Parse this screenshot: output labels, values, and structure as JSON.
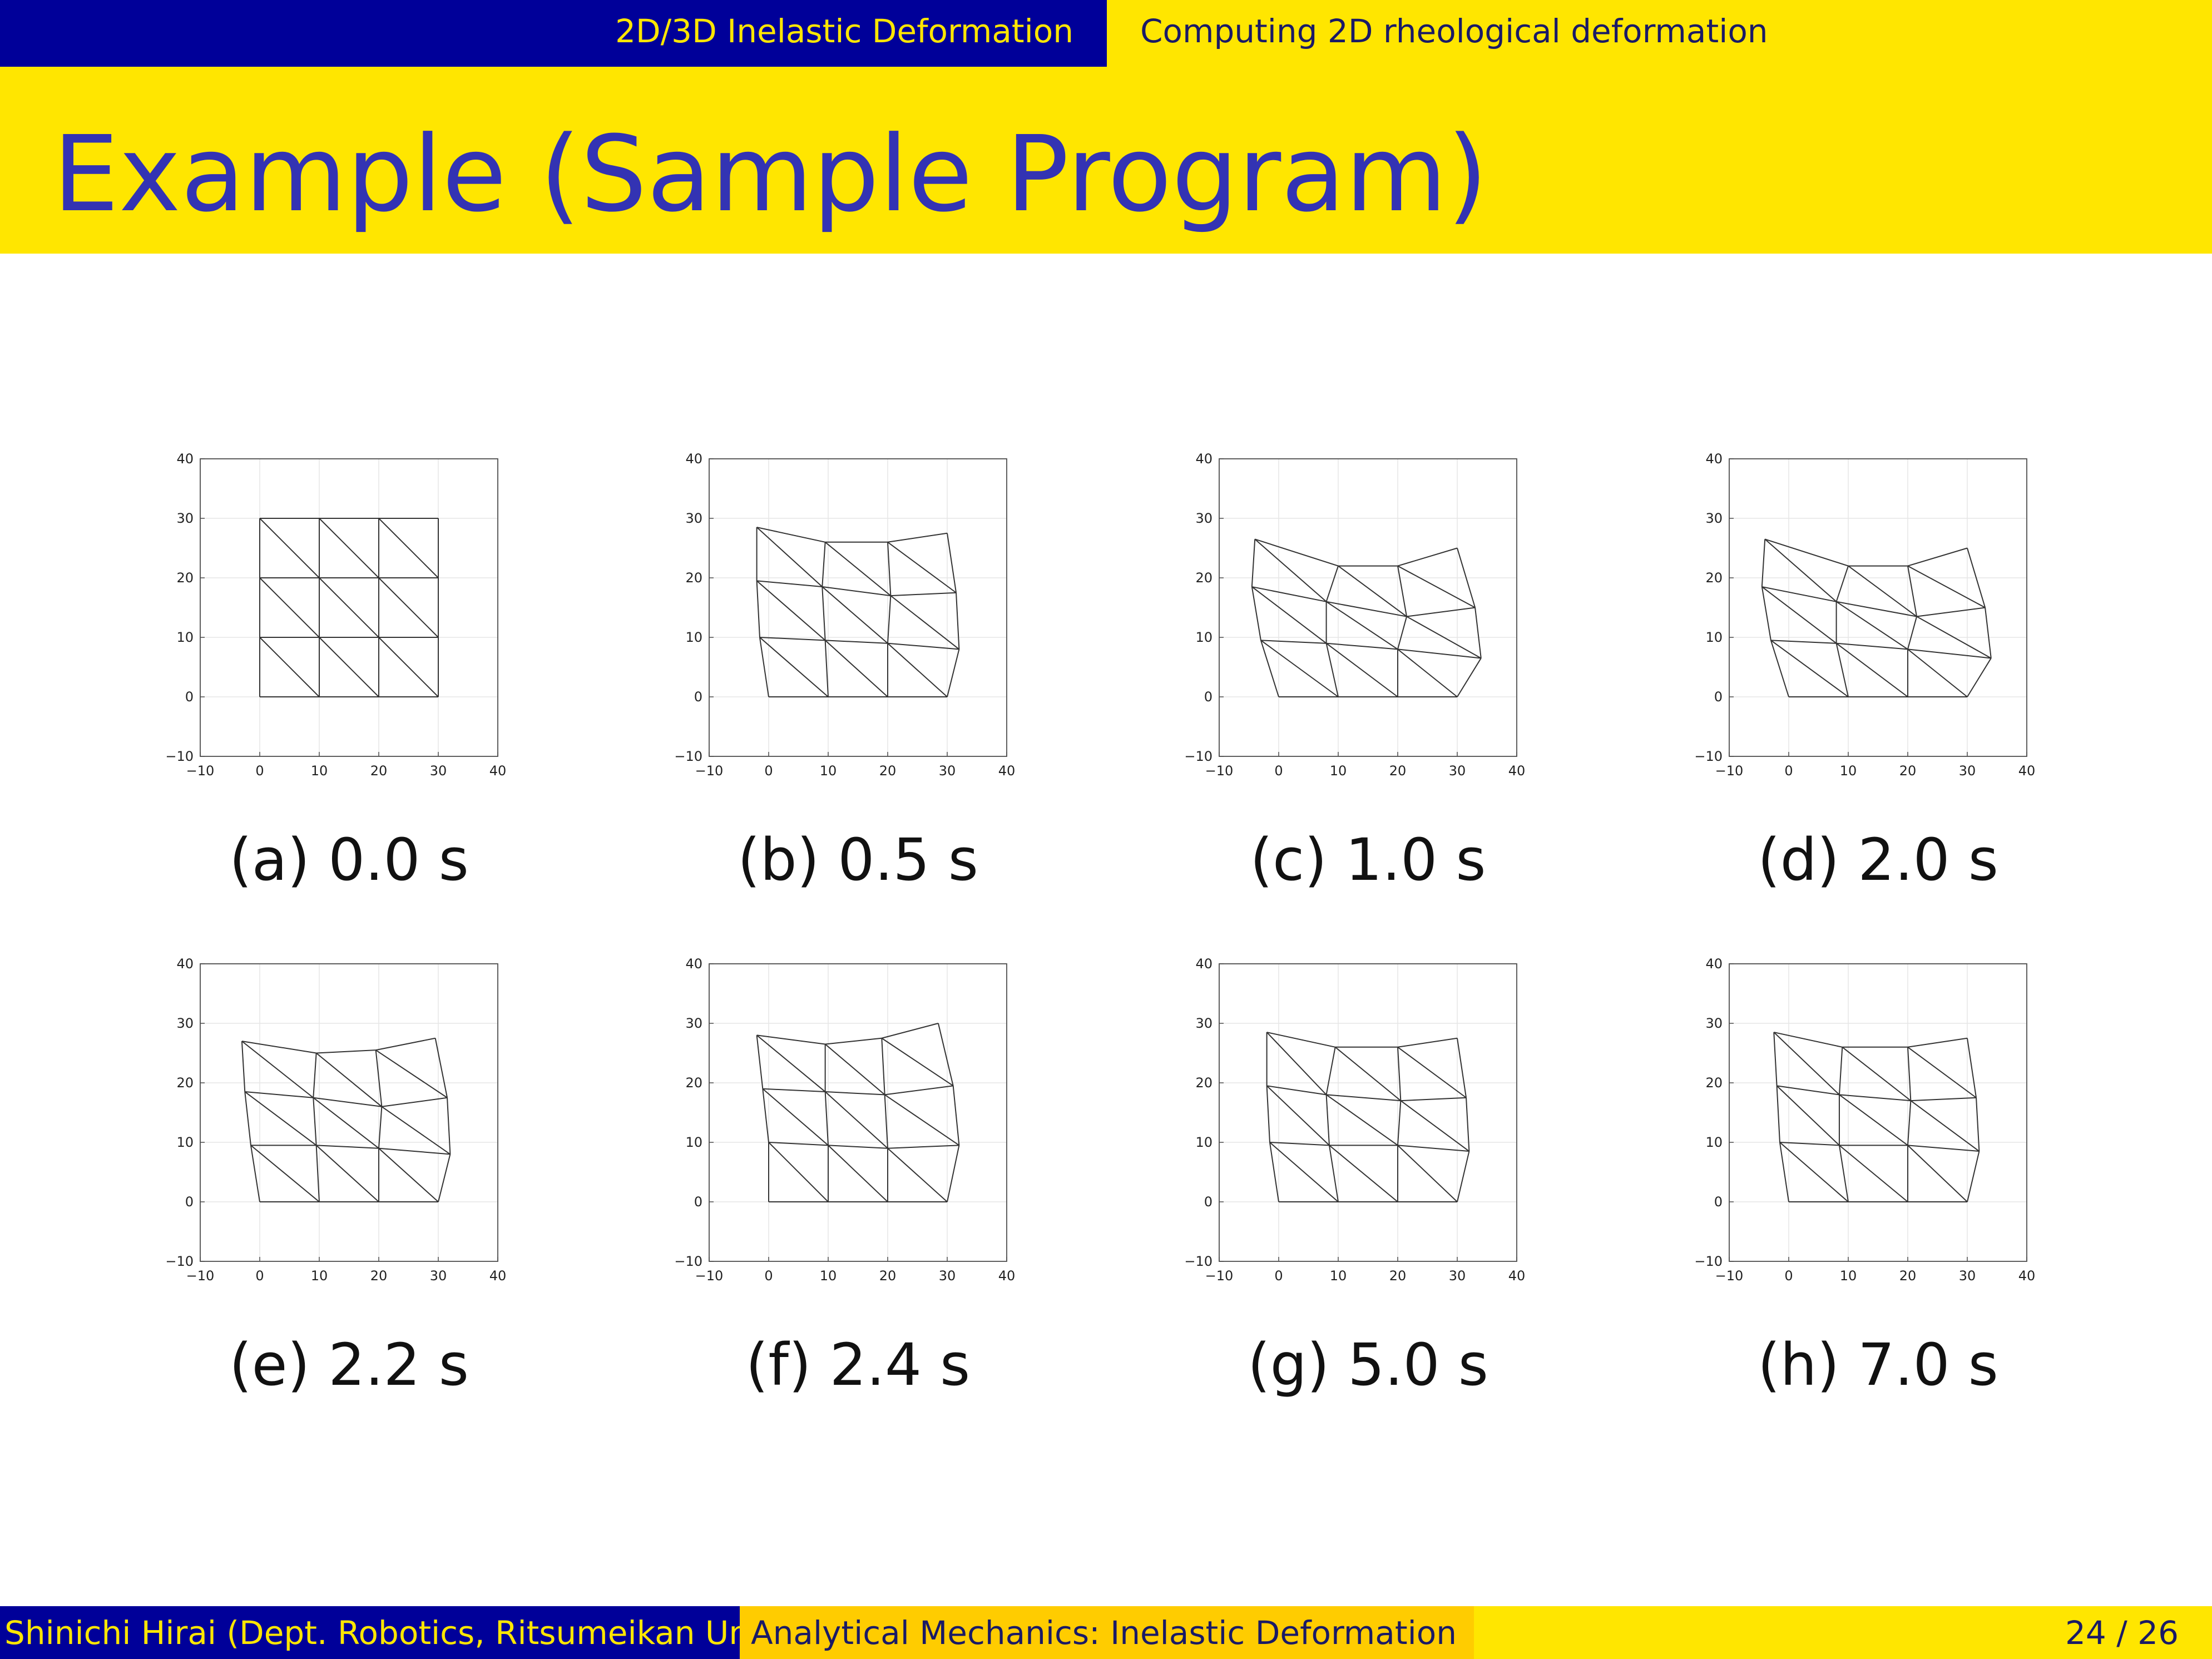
{
  "header": {
    "section": "2D/3D Inelastic Deformation",
    "subsection": "Computing 2D rheological deformation"
  },
  "frame_title": "Example (Sample Program)",
  "footer": {
    "author": "Shinichi Hirai (Dept. Robotics, Ritsumeikan Univ.)",
    "course": "Analytical Mechanics: Inelastic Deformation",
    "page": "24 / 26"
  },
  "colors": {
    "dark_blue": "#000099",
    "yellow": "#ffe600",
    "footer_mid": "#ffcc00",
    "title_text": "#3333b3",
    "mesh_line": "#333333",
    "grid": "#e6e6e6"
  },
  "chart_data": [
    {
      "type": "line",
      "caption": "(a) 0.0 s",
      "xlim": [
        -10,
        40
      ],
      "ylim": [
        -10,
        40
      ],
      "xticks": [
        "−10",
        "0",
        "10",
        "20",
        "30",
        "40"
      ],
      "yticks": [
        "−10",
        "0",
        "10",
        "20",
        "30",
        "40"
      ],
      "grid": true,
      "nodes": [
        [
          0,
          0
        ],
        [
          10,
          0
        ],
        [
          20,
          0
        ],
        [
          30,
          0
        ],
        [
          0,
          10
        ],
        [
          10,
          10
        ],
        [
          20,
          10
        ],
        [
          30,
          10
        ],
        [
          0,
          20
        ],
        [
          10,
          20
        ],
        [
          20,
          20
        ],
        [
          30,
          20
        ],
        [
          0,
          30
        ],
        [
          10,
          30
        ],
        [
          20,
          30
        ],
        [
          30,
          30
        ]
      ]
    },
    {
      "type": "line",
      "caption": "(b) 0.5 s",
      "xlim": [
        -10,
        40
      ],
      "ylim": [
        -10,
        40
      ],
      "xticks": [
        "−10",
        "0",
        "10",
        "20",
        "30",
        "40"
      ],
      "yticks": [
        "−10",
        "0",
        "10",
        "20",
        "30",
        "40"
      ],
      "grid": true,
      "nodes": [
        [
          0,
          0
        ],
        [
          10,
          0
        ],
        [
          20,
          0
        ],
        [
          30,
          0
        ],
        [
          -1.5,
          10
        ],
        [
          9.5,
          9.5
        ],
        [
          20,
          9
        ],
        [
          32,
          8
        ],
        [
          -2,
          19.5
        ],
        [
          9,
          18.5
        ],
        [
          20.5,
          17
        ],
        [
          31.5,
          17.5
        ],
        [
          -2,
          28.5
        ],
        [
          9.5,
          26
        ],
        [
          20,
          26
        ],
        [
          30,
          27.5
        ]
      ]
    },
    {
      "type": "line",
      "caption": "(c) 1.0 s",
      "xlim": [
        -10,
        40
      ],
      "ylim": [
        -10,
        40
      ],
      "xticks": [
        "−10",
        "0",
        "10",
        "20",
        "30",
        "40"
      ],
      "yticks": [
        "−10",
        "0",
        "10",
        "20",
        "30",
        "40"
      ],
      "grid": true,
      "nodes": [
        [
          0,
          0
        ],
        [
          10,
          0
        ],
        [
          20,
          0
        ],
        [
          30,
          0
        ],
        [
          -3,
          9.5
        ],
        [
          8,
          9
        ],
        [
          20,
          8
        ],
        [
          34,
          6.5
        ],
        [
          -4.5,
          18.5
        ],
        [
          8,
          16
        ],
        [
          21.5,
          13.5
        ],
        [
          33,
          15
        ],
        [
          -4,
          26.5
        ],
        [
          10,
          22
        ],
        [
          20,
          22
        ],
        [
          30,
          25
        ]
      ]
    },
    {
      "type": "line",
      "caption": "(d) 2.0 s",
      "xlim": [
        -10,
        40
      ],
      "ylim": [
        -10,
        40
      ],
      "xticks": [
        "−10",
        "0",
        "10",
        "20",
        "30",
        "40"
      ],
      "yticks": [
        "−10",
        "0",
        "10",
        "20",
        "30",
        "40"
      ],
      "grid": true,
      "nodes": [
        [
          0,
          0
        ],
        [
          10,
          0
        ],
        [
          20,
          0
        ],
        [
          30,
          0
        ],
        [
          -3,
          9.5
        ],
        [
          8,
          9
        ],
        [
          20,
          8
        ],
        [
          34,
          6.5
        ],
        [
          -4.5,
          18.5
        ],
        [
          8,
          16
        ],
        [
          21.5,
          13.5
        ],
        [
          33,
          15
        ],
        [
          -4,
          26.5
        ],
        [
          10,
          22
        ],
        [
          20,
          22
        ],
        [
          30,
          25
        ]
      ]
    },
    {
      "type": "line",
      "caption": "(e) 2.2 s",
      "xlim": [
        -10,
        40
      ],
      "ylim": [
        -10,
        40
      ],
      "xticks": [
        "−10",
        "0",
        "10",
        "20",
        "30",
        "40"
      ],
      "yticks": [
        "−10",
        "0",
        "10",
        "20",
        "30",
        "40"
      ],
      "grid": true,
      "nodes": [
        [
          0,
          0
        ],
        [
          10,
          0
        ],
        [
          20,
          0
        ],
        [
          30,
          0
        ],
        [
          -1.5,
          9.5
        ],
        [
          9.5,
          9.5
        ],
        [
          20,
          9
        ],
        [
          32,
          8
        ],
        [
          -2.5,
          18.5
        ],
        [
          9,
          17.5
        ],
        [
          20.5,
          16
        ],
        [
          31.5,
          17.5
        ],
        [
          -3,
          27
        ],
        [
          9.5,
          25
        ],
        [
          19.5,
          25.5
        ],
        [
          29.5,
          27.5
        ]
      ]
    },
    {
      "type": "line",
      "caption": "(f) 2.4 s",
      "xlim": [
        -10,
        40
      ],
      "ylim": [
        -10,
        40
      ],
      "xticks": [
        "−10",
        "0",
        "10",
        "20",
        "30",
        "40"
      ],
      "yticks": [
        "−10",
        "0",
        "10",
        "20",
        "30",
        "40"
      ],
      "grid": true,
      "nodes": [
        [
          0,
          0
        ],
        [
          10,
          0
        ],
        [
          20,
          0
        ],
        [
          30,
          0
        ],
        [
          0,
          10
        ],
        [
          10,
          9.5
        ],
        [
          20,
          9
        ],
        [
          32,
          9.5
        ],
        [
          -1,
          19
        ],
        [
          9.5,
          18.5
        ],
        [
          19.5,
          18
        ],
        [
          31,
          19.5
        ],
        [
          -2,
          28
        ],
        [
          9.5,
          26.5
        ],
        [
          19,
          27.5
        ],
        [
          28.5,
          30
        ]
      ]
    },
    {
      "type": "line",
      "caption": "(g) 5.0 s",
      "xlim": [
        -10,
        40
      ],
      "ylim": [
        -10,
        40
      ],
      "xticks": [
        "−10",
        "0",
        "10",
        "20",
        "30",
        "40"
      ],
      "yticks": [
        "−10",
        "0",
        "10",
        "20",
        "30",
        "40"
      ],
      "grid": true,
      "nodes": [
        [
          0,
          0
        ],
        [
          10,
          0
        ],
        [
          20,
          0
        ],
        [
          30,
          0
        ],
        [
          -1.5,
          10
        ],
        [
          8.5,
          9.5
        ],
        [
          20,
          9.5
        ],
        [
          32,
          8.5
        ],
        [
          -2,
          19.5
        ],
        [
          8,
          18
        ],
        [
          20.5,
          17
        ],
        [
          31.5,
          17.5
        ],
        [
          -2,
          28.5
        ],
        [
          9.5,
          26
        ],
        [
          20,
          26
        ],
        [
          30,
          27.5
        ]
      ]
    },
    {
      "type": "line",
      "caption": "(h) 7.0 s",
      "xlim": [
        -10,
        40
      ],
      "ylim": [
        -10,
        40
      ],
      "xticks": [
        "−10",
        "0",
        "10",
        "20",
        "30",
        "40"
      ],
      "yticks": [
        "−10",
        "0",
        "10",
        "20",
        "30",
        "40"
      ],
      "grid": true,
      "nodes": [
        [
          0,
          0
        ],
        [
          10,
          0
        ],
        [
          20,
          0
        ],
        [
          30,
          0
        ],
        [
          -1.5,
          10
        ],
        [
          8.5,
          9.5
        ],
        [
          20,
          9.5
        ],
        [
          32,
          8.5
        ],
        [
          -2,
          19.5
        ],
        [
          8.5,
          18
        ],
        [
          20.5,
          17
        ],
        [
          31.5,
          17.5
        ],
        [
          -2.5,
          28.5
        ],
        [
          9,
          26
        ],
        [
          20,
          26
        ],
        [
          30,
          27.5
        ]
      ]
    }
  ]
}
